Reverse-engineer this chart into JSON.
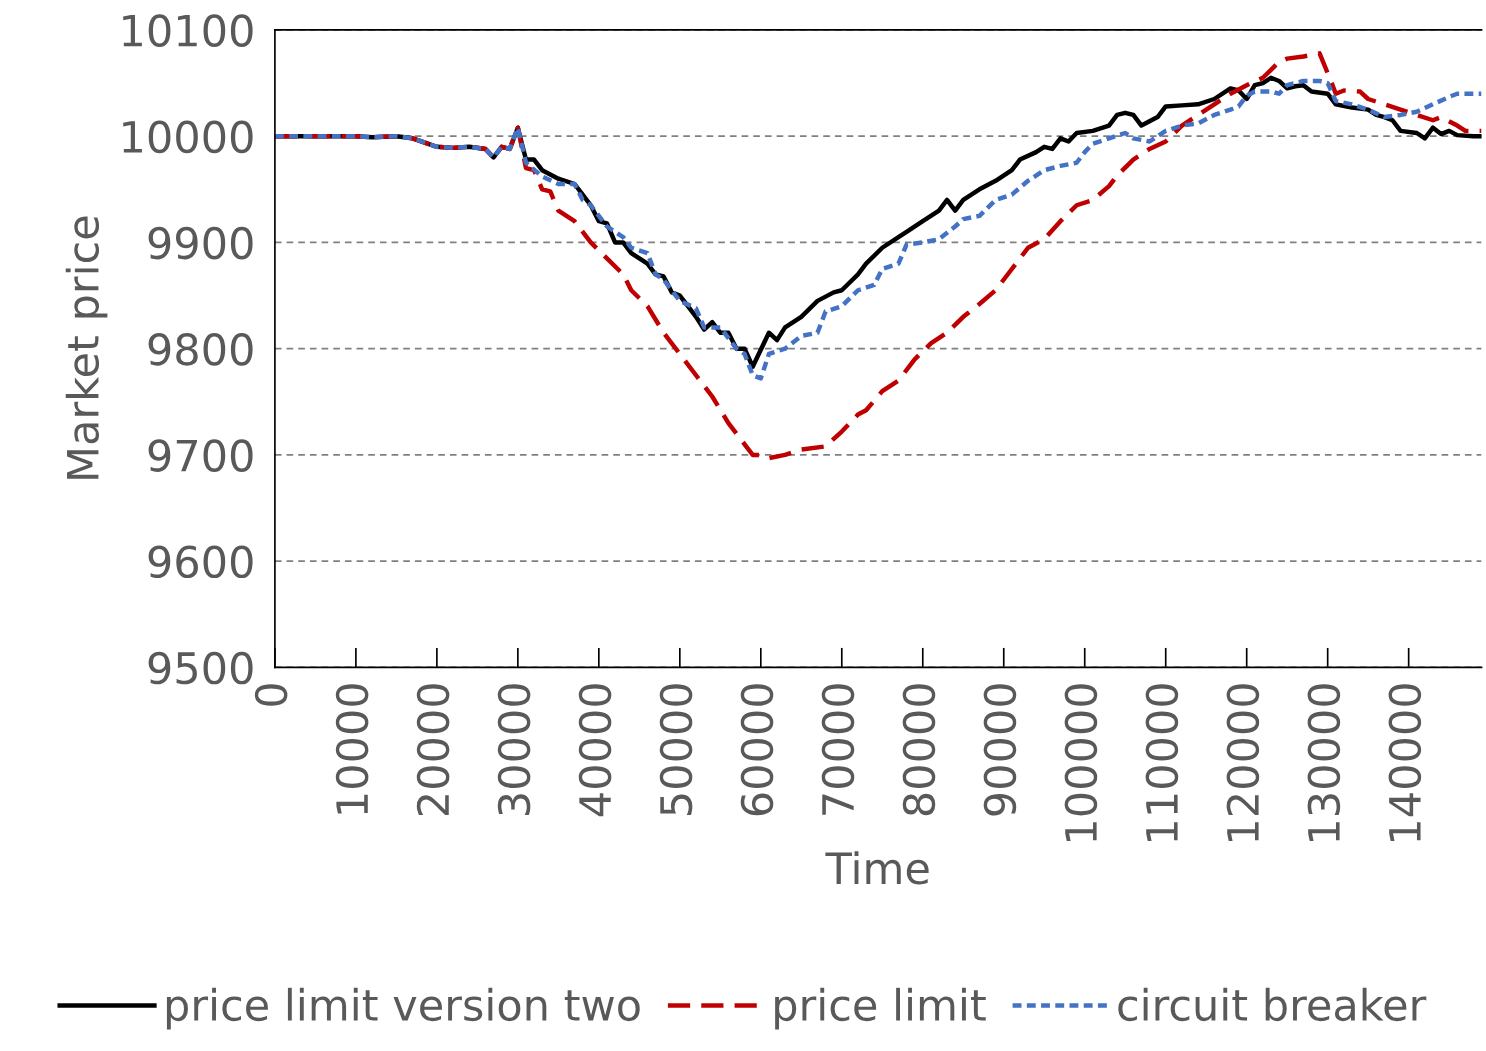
{
  "chart_data": {
    "type": "line",
    "xlabel": "Time",
    "ylabel": "Market price",
    "xlim": [
      0,
      149000
    ],
    "xticks": [
      0,
      10000,
      20000,
      30000,
      40000,
      50000,
      60000,
      70000,
      80000,
      90000,
      100000,
      110000,
      120000,
      130000,
      140000
    ],
    "ylim": [
      9500,
      10100
    ],
    "yticks": [
      9500,
      9600,
      9700,
      9800,
      9900,
      10000,
      10100
    ],
    "grid": "y",
    "legend": "bottom",
    "marker": "none",
    "series": [
      {
        "name": "price limit version two",
        "color": "#000000",
        "line_style": "solid",
        "x": [
          0,
          10000,
          12000,
          15000,
          17000,
          20000,
          22000,
          24000,
          26000,
          27000,
          28000,
          29000,
          30000,
          31000,
          32000,
          33000,
          35000,
          37000,
          38000,
          39000,
          40000,
          41000,
          42000,
          43000,
          44000,
          46000,
          47000,
          48000,
          49000,
          50000,
          51000,
          52000,
          53000,
          54000,
          55000,
          56000,
          57000,
          58000,
          59000,
          61000,
          62000,
          63000,
          65000,
          67000,
          69000,
          70000,
          72000,
          73000,
          75000,
          77000,
          78000,
          80000,
          82000,
          83000,
          84000,
          85000,
          87000,
          89000,
          91000,
          92000,
          94000,
          95000,
          96000,
          97000,
          98000,
          99000,
          101000,
          103000,
          104000,
          105000,
          106000,
          107000,
          109000,
          110000,
          112000,
          114000,
          116000,
          118000,
          119000,
          120000,
          121000,
          122000,
          123000,
          124000,
          125000,
          126000,
          127000,
          128000,
          130000,
          131000,
          133000,
          135000,
          136000,
          137000,
          138000,
          139000,
          141000,
          142000,
          143000,
          144000,
          145000,
          146000,
          148000,
          149000
        ],
        "values": [
          10000,
          10000,
          9999,
          10000,
          9998,
          9990,
          9989,
          9990,
          9988,
          9980,
          9990,
          9988,
          10008,
          9978,
          9978,
          9968,
          9960,
          9955,
          9945,
          9935,
          9920,
          9918,
          9900,
          9900,
          9890,
          9880,
          9870,
          9868,
          9853,
          9850,
          9840,
          9830,
          9818,
          9825,
          9815,
          9815,
          9800,
          9800,
          9783,
          9815,
          9808,
          9820,
          9830,
          9845,
          9853,
          9855,
          9870,
          9880,
          9895,
          9905,
          9910,
          9920,
          9930,
          9940,
          9930,
          9940,
          9950,
          9958,
          9968,
          9978,
          9985,
          9990,
          9988,
          9998,
          9995,
          10003,
          10005,
          10010,
          10020,
          10022,
          10020,
          10010,
          10018,
          10028,
          10029,
          10030,
          10035,
          10045,
          10043,
          10035,
          10048,
          10050,
          10055,
          10052,
          10045,
          10047,
          10048,
          10042,
          10040,
          10030,
          10027,
          10025,
          10020,
          10018,
          10015,
          10005,
          10003,
          9998,
          10008,
          10002,
          10005,
          10001,
          10000,
          10000
        ]
      },
      {
        "name": "price limit",
        "color": "#c00000",
        "line_style": "dashed",
        "x": [
          0,
          10000,
          12000,
          15000,
          17000,
          20000,
          22000,
          24000,
          26000,
          27000,
          28000,
          29000,
          30000,
          31000,
          32000,
          33000,
          34000,
          35000,
          37000,
          39000,
          41000,
          43000,
          44000,
          46000,
          48000,
          50000,
          52000,
          54000,
          56000,
          58000,
          59000,
          60000,
          61000,
          63000,
          65000,
          68000,
          70000,
          72000,
          73000,
          75000,
          77000,
          79000,
          81000,
          83000,
          85000,
          87000,
          89000,
          91000,
          93000,
          95000,
          97000,
          99000,
          101000,
          103000,
          104000,
          106000,
          108000,
          110000,
          112000,
          114000,
          116000,
          118000,
          120000,
          122000,
          124000,
          125000,
          127000,
          129000,
          130500,
          131000,
          132000,
          134000,
          135000,
          137000,
          139000,
          141000,
          143000,
          144000,
          146000,
          147000,
          149000
        ],
        "values": [
          10000,
          10000,
          9999,
          10000,
          9998,
          9990,
          9989,
          9990,
          9988,
          9980,
          9990,
          9988,
          10008,
          9970,
          9968,
          9950,
          9948,
          9930,
          9920,
          9900,
          9885,
          9870,
          9855,
          9840,
          9815,
          9795,
          9775,
          9755,
          9730,
          9710,
          9700,
          9700,
          9697,
          9700,
          9705,
          9708,
          9722,
          9738,
          9742,
          9760,
          9770,
          9790,
          9805,
          9815,
          9830,
          9842,
          9855,
          9875,
          9895,
          9903,
          9920,
          9935,
          9940,
          9953,
          9963,
          9978,
          9988,
          9995,
          10010,
          10020,
          10030,
          10040,
          10048,
          10055,
          10070,
          10073,
          10075,
          10078,
          10050,
          10040,
          10043,
          10042,
          10035,
          10030,
          10025,
          10020,
          10015,
          10018,
          10010,
          10005,
          10005
        ]
      },
      {
        "name": "circuit breaker",
        "color": "#4472c4",
        "line_style": "dotted",
        "x": [
          0,
          10000,
          12000,
          15000,
          17000,
          20000,
          22000,
          24000,
          26000,
          27000,
          28000,
          29000,
          30000,
          31000,
          33000,
          35000,
          37000,
          38000,
          39000,
          40000,
          41000,
          43000,
          44000,
          46000,
          47000,
          48000,
          50000,
          52000,
          53000,
          55000,
          56000,
          57000,
          58000,
          59000,
          60000,
          61000,
          63000,
          65000,
          67000,
          68000,
          70000,
          72000,
          74000,
          75000,
          77000,
          78000,
          80000,
          82000,
          84000,
          85000,
          87000,
          89000,
          91000,
          93000,
          95000,
          97000,
          99000,
          100000,
          101000,
          103000,
          105000,
          106000,
          108000,
          110000,
          112000,
          114000,
          116000,
          118000,
          119000,
          120000,
          121000,
          123000,
          124000,
          125000,
          127000,
          129000,
          130000,
          131000,
          133000,
          135000,
          137000,
          139000,
          141000,
          143000,
          145000,
          146000,
          149000
        ],
        "values": [
          10000,
          10000,
          9999,
          10000,
          9998,
          9990,
          9989,
          9990,
          9988,
          9980,
          9990,
          9988,
          10008,
          9975,
          9962,
          9955,
          9955,
          9940,
          9935,
          9925,
          9915,
          9905,
          9895,
          9890,
          9870,
          9865,
          9845,
          9838,
          9820,
          9820,
          9810,
          9800,
          9795,
          9775,
          9772,
          9795,
          9800,
          9812,
          9815,
          9835,
          9840,
          9855,
          9860,
          9875,
          9880,
          9898,
          9900,
          9903,
          9915,
          9922,
          9925,
          9940,
          9945,
          9958,
          9968,
          9972,
          9975,
          9985,
          9993,
          9998,
          10003,
          9998,
          9995,
          10005,
          10010,
          10012,
          10020,
          10025,
          10028,
          10038,
          10042,
          10042,
          10040,
          10048,
          10052,
          10052,
          10050,
          10033,
          10030,
          10025,
          10018,
          10020,
          10023,
          10030,
          10037,
          10040,
          10040
        ]
      }
    ]
  }
}
